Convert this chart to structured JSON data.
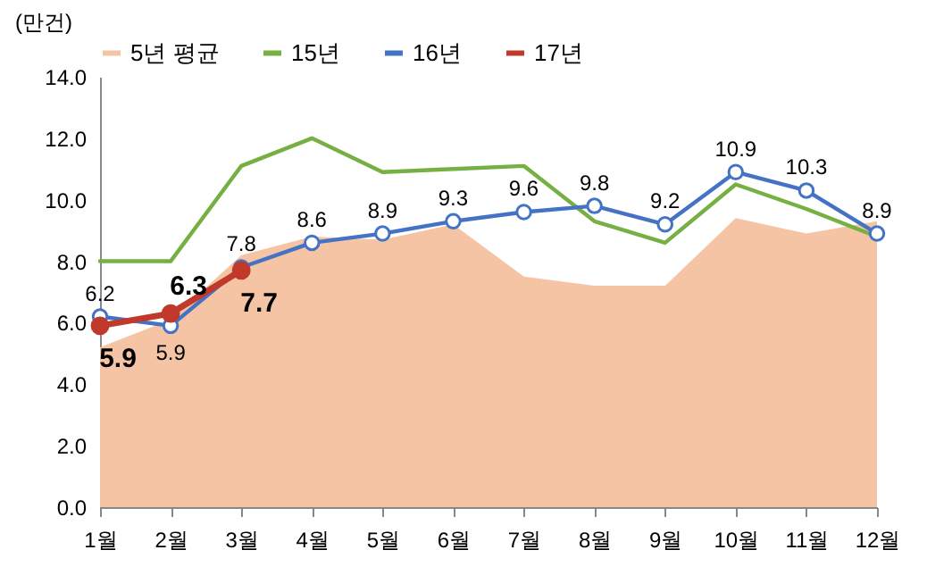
{
  "chart_data": {
    "type": "line",
    "ylabel": "(만건)",
    "categories": [
      "1월",
      "2월",
      "3월",
      "4월",
      "5월",
      "6월",
      "7월",
      "8월",
      "9월",
      "10월",
      "11월",
      "12월"
    ],
    "series": [
      {
        "name": "5년 평균",
        "type": "area",
        "color": "#f5c4a5",
        "values": [
          5.2,
          6.1,
          8.2,
          8.8,
          8.7,
          9.2,
          7.5,
          7.2,
          7.2,
          9.4,
          8.9,
          9.3
        ]
      },
      {
        "name": "15년",
        "color": "#76b043",
        "marker": "none",
        "values": [
          8.0,
          8.0,
          11.1,
          12.0,
          10.9,
          11.0,
          11.1,
          9.3,
          8.6,
          10.5,
          9.7,
          8.8
        ]
      },
      {
        "name": "16년",
        "color": "#4472c4",
        "marker": "circle",
        "data_labels": true,
        "values": [
          6.2,
          5.9,
          7.8,
          8.6,
          8.9,
          9.3,
          9.6,
          9.8,
          9.2,
          10.9,
          10.3,
          8.9
        ]
      },
      {
        "name": "17년",
        "color": "#c0392b",
        "marker": "circle",
        "data_labels": true,
        "values": [
          5.9,
          6.3,
          7.7,
          null,
          null,
          null,
          null,
          null,
          null,
          null,
          null,
          null
        ]
      }
    ],
    "ylim": [
      0,
      14
    ],
    "yticks": [
      {
        "value": 0,
        "label": "0.0"
      },
      {
        "value": 2,
        "label": "2.0"
      },
      {
        "value": 4,
        "label": "4.0"
      },
      {
        "value": 6,
        "label": "6.0"
      },
      {
        "value": 8,
        "label": "8.0"
      },
      {
        "value": 10,
        "label": "10.0"
      },
      {
        "value": 12,
        "label": "12.0"
      },
      {
        "value": 14,
        "label": "14.0"
      }
    ],
    "grid": false,
    "legend": "top"
  }
}
